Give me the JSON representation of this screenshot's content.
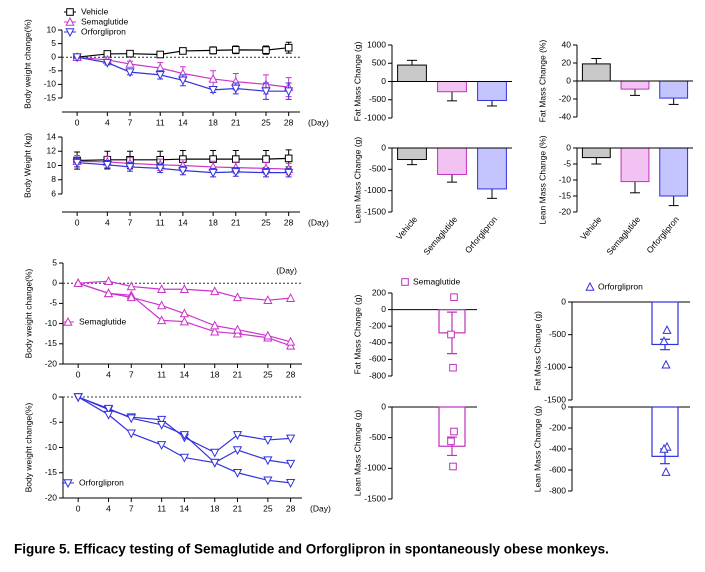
{
  "caption": "Figure 5. Efficacy testing of Semaglutide and Orforglipron in spontaneously obese monkeys.",
  "chart_data": [
    {
      "type": "line",
      "ylabel": "Body weight change(%)",
      "xlabel": "(Day)",
      "x": [
        0,
        4,
        7,
        11,
        14,
        18,
        21,
        25,
        28
      ],
      "xlim": [
        -2,
        29.5
      ],
      "xticks": [
        0,
        4,
        7,
        11,
        14,
        18,
        21,
        25,
        28
      ],
      "ylim": [
        -15,
        10
      ],
      "yticks": [
        -15,
        -10,
        -5,
        0,
        5,
        10
      ],
      "zero_line": true,
      "series": [
        {
          "name": "Vehicle",
          "color": "#000000",
          "marker": "square",
          "values": [
            0,
            1.2,
            1.3,
            1.0,
            2.3,
            2.5,
            2.7,
            2.6,
            3.5
          ],
          "errors": [
            0.3,
            1.0,
            1.0,
            0.8,
            1.0,
            1.3,
            1.4,
            1.5,
            2.0
          ]
        },
        {
          "name": "Semaglutide",
          "color": "#cc33cc",
          "marker": "triangle-up",
          "values": [
            0,
            -1,
            -2.5,
            -4,
            -6,
            -8,
            -9,
            -10,
            -11
          ],
          "errors": [
            0.3,
            1.0,
            1.0,
            2.0,
            2.5,
            3.0,
            3.0,
            3.5,
            3.5
          ]
        },
        {
          "name": "Orforglipron",
          "color": "#3333dd",
          "marker": "triangle-down",
          "values": [
            0,
            -2,
            -5.5,
            -6.5,
            -8.5,
            -12,
            -11.5,
            -12.5,
            -12.5
          ],
          "errors": [
            0.3,
            0.8,
            1.0,
            1.5,
            2.0,
            1.0,
            2.0,
            3.0,
            3.0
          ]
        }
      ]
    },
    {
      "type": "line",
      "ylabel": "Body Weight (kg)",
      "xlabel": "(Day)",
      "x": [
        0,
        4,
        7,
        11,
        14,
        18,
        21,
        25,
        28
      ],
      "xlim": [
        -2,
        29.5
      ],
      "xticks": [
        0,
        4,
        7,
        11,
        14,
        18,
        21,
        25,
        28
      ],
      "ylim": [
        6,
        14
      ],
      "yticks": [
        6,
        8,
        10,
        12,
        14
      ],
      "zero_line": false,
      "series": [
        {
          "color": "#000000",
          "marker": "square",
          "values": [
            10.7,
            10.8,
            10.8,
            10.8,
            10.9,
            10.9,
            10.9,
            10.9,
            11.0
          ],
          "errors": [
            1.2,
            1.2,
            1.2,
            1.2,
            1.2,
            1.2,
            1.2,
            1.2,
            1.2
          ]
        },
        {
          "color": "#cc33cc",
          "marker": "triangle-up",
          "values": [
            10.6,
            10.5,
            10.3,
            10.1,
            10.0,
            9.8,
            9.7,
            9.6,
            9.5
          ],
          "errors": [
            0.8,
            0.8,
            0.8,
            0.8,
            0.8,
            0.8,
            0.8,
            0.8,
            0.8
          ]
        },
        {
          "color": "#3333dd",
          "marker": "triangle-down",
          "values": [
            10.4,
            10.1,
            9.8,
            9.6,
            9.3,
            9.0,
            9.1,
            9.0,
            9.0
          ],
          "errors": [
            0.6,
            0.6,
            0.6,
            0.6,
            0.6,
            0.6,
            0.6,
            0.6,
            0.6
          ]
        }
      ]
    },
    {
      "type": "bar",
      "ylabel": "Fat Mass Change (g)",
      "ylim": [
        -1000,
        1000
      ],
      "yticks": [
        -1000,
        -500,
        0,
        500,
        1000
      ],
      "values": [
        450,
        -280,
        -520
      ],
      "errors": [
        130,
        250,
        150
      ],
      "colors": [
        "#c8c8c8",
        "#f2c2f2",
        "#c4c4ff"
      ],
      "edge_colors": [
        "#000000",
        "#c030c0",
        "#3030e0"
      ]
    },
    {
      "type": "bar",
      "ylabel": "Fat Mass Change (%)",
      "ylim": [
        -40,
        40
      ],
      "yticks": [
        -40,
        -20,
        0,
        20,
        40
      ],
      "values": [
        19,
        -9,
        -19
      ],
      "errors": [
        6,
        7,
        7
      ],
      "colors": [
        "#c8c8c8",
        "#f2c2f2",
        "#c4c4ff"
      ],
      "edge_colors": [
        "#000000",
        "#c030c0",
        "#3030e0"
      ]
    },
    {
      "type": "bar",
      "ylabel": "Lean Mass Change (g)",
      "ylim": [
        -1500,
        0
      ],
      "yticks": [
        -1500,
        -1000,
        -500,
        0
      ],
      "categories": [
        "Vehicle",
        "Semaglutide",
        "Orforglipron"
      ],
      "values": [
        -270,
        -620,
        -960
      ],
      "errors": [
        120,
        180,
        220
      ],
      "colors": [
        "#c8c8c8",
        "#f2c2f2",
        "#c4c4ff"
      ],
      "edge_colors": [
        "#000000",
        "#c030c0",
        "#3030e0"
      ]
    },
    {
      "type": "bar",
      "ylabel": "Lean Mass Change (%)",
      "ylim": [
        -20,
        0
      ],
      "yticks": [
        -20,
        -15,
        -10,
        -5,
        0
      ],
      "categories": [
        "Vehicle",
        "Semaglutide",
        "Orforglipron"
      ],
      "values": [
        -3,
        -10.5,
        -15
      ],
      "errors": [
        2,
        3.5,
        3
      ],
      "colors": [
        "#c8c8c8",
        "#f2c2f2",
        "#c4c4ff"
      ],
      "edge_colors": [
        "#000000",
        "#c030c0",
        "#3030e0"
      ]
    },
    {
      "type": "line",
      "ylabel": "Body weight change(%)",
      "xlabel": "(Day)",
      "x": [
        0,
        4,
        7,
        11,
        14,
        18,
        21,
        25,
        28
      ],
      "xlim": [
        -2,
        29.5
      ],
      "xticks": [
        0,
        4,
        7,
        11,
        14,
        18,
        21,
        25,
        28
      ],
      "ylim": [
        -20,
        5
      ],
      "yticks": [
        -20,
        -15,
        -10,
        -5,
        0,
        5
      ],
      "zero_line": true,
      "series": [
        {
          "name": "Semaglutide",
          "color": "#cc33cc",
          "marker": "triangle-up",
          "values": [
            0,
            -2.5,
            -3,
            -9.2,
            -9.5,
            -12,
            -12.5,
            -13.5,
            -15.5
          ]
        },
        {
          "color": "#cc33cc",
          "marker": "triangle-up",
          "values": [
            0,
            -2.5,
            -3.5,
            -5.5,
            -7.5,
            -10.5,
            -11.5,
            -13,
            -14.5
          ]
        },
        {
          "color": "#cc33cc",
          "marker": "triangle-up",
          "values": [
            0,
            0.5,
            -0.8,
            -1.5,
            -1.5,
            -2,
            -3.5,
            -4.2,
            -3.7
          ]
        }
      ]
    },
    {
      "type": "line",
      "ylabel": "Body weight change(%)",
      "xlabel": "(Day)",
      "x": [
        0,
        4,
        7,
        11,
        14,
        18,
        21,
        25,
        28
      ],
      "xlim": [
        -2,
        29.5
      ],
      "xticks": [
        0,
        4,
        7,
        11,
        14,
        18,
        21,
        25,
        28
      ],
      "ylim": [
        -20,
        0
      ],
      "yticks": [
        -20,
        -15,
        -10,
        -5,
        0
      ],
      "zero_line": true,
      "series": [
        {
          "name": "Orforglipron",
          "color": "#3333dd",
          "marker": "triangle-down",
          "values": [
            0,
            -2.5,
            -4,
            -4.5,
            -8,
            -11,
            -7.5,
            -8.5,
            -8.2
          ]
        },
        {
          "color": "#3333dd",
          "marker": "triangle-down",
          "values": [
            0,
            -2.3,
            -4.2,
            -5.5,
            -7.5,
            -13,
            -10.5,
            -12.5,
            -13.2
          ]
        },
        {
          "color": "#3333dd",
          "marker": "triangle-down",
          "values": [
            0,
            -3.5,
            -7.2,
            -9.5,
            -12,
            -13,
            -15,
            -16.5,
            -17
          ]
        }
      ]
    },
    {
      "type": "dotbar",
      "ylabel": "Fat Mass Change (g)",
      "ylim": [
        -800,
        200
      ],
      "yticks": [
        -800,
        -600,
        -400,
        -200,
        0,
        200
      ],
      "series": [
        {
          "name": "Semaglutide",
          "color": "#c030c0",
          "fill": "#ffffff",
          "marker": "square",
          "values": [
            -280
          ],
          "errors": [
            250
          ],
          "points": [
            150,
            -300,
            -700
          ]
        }
      ]
    },
    {
      "type": "dotbar",
      "ylabel": "Fat Mass Change (g)",
      "ylim": [
        -1500,
        0
      ],
      "yticks": [
        -1500,
        -1000,
        -500,
        0
      ],
      "series": [
        {
          "name": "Orforglipron",
          "color": "#3030e0",
          "fill": "#ffffff",
          "marker": "triangle-up",
          "values": [
            -650
          ],
          "errors": [
            80
          ],
          "points": [
            -430,
            -600,
            -960
          ]
        }
      ]
    },
    {
      "type": "dotbar",
      "ylabel": "Lean Mass Change (g)",
      "ylim": [
        -1500,
        0
      ],
      "yticks": [
        -1500,
        -1000,
        -500,
        0
      ],
      "series": [
        {
          "color": "#c030c0",
          "fill": "#ffffff",
          "marker": "square",
          "values": [
            -640
          ],
          "errors": [
            150
          ],
          "points": [
            -400,
            -560,
            -970
          ]
        }
      ]
    },
    {
      "type": "dotbar",
      "ylabel": "Lean Mass Change (g)",
      "ylim": [
        -800,
        0
      ],
      "yticks": [
        -800,
        -600,
        -400,
        -200,
        0
      ],
      "series": [
        {
          "color": "#3030e0",
          "fill": "#ffffff",
          "marker": "triangle-up",
          "values": [
            -470
          ],
          "errors": [
            70
          ],
          "points": [
            -380,
            -400,
            -620
          ]
        }
      ]
    }
  ]
}
